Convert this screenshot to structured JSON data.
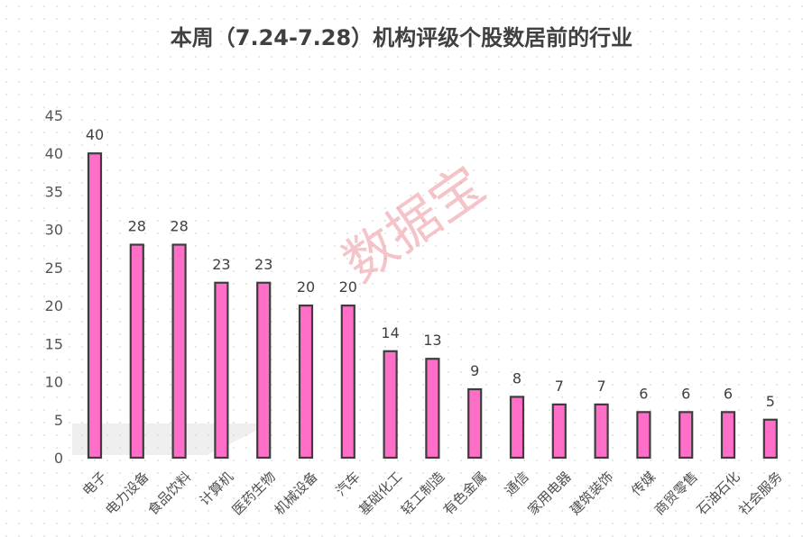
{
  "chart_data": {
    "type": "bar",
    "title": "本周（7.24-7.28）机构评级个股数居前的行业",
    "categories": [
      "电子",
      "电力设备",
      "食品饮料",
      "计算机",
      "医药生物",
      "机械设备",
      "汽车",
      "基础化工",
      "轻工制造",
      "有色金属",
      "通信",
      "家用电器",
      "建筑装饰",
      "传媒",
      "商贸零售",
      "石油石化",
      "社会服务"
    ],
    "values": [
      40,
      28,
      28,
      23,
      23,
      20,
      20,
      14,
      13,
      9,
      8,
      7,
      7,
      6,
      6,
      6,
      5
    ],
    "ylim": [
      0,
      45
    ],
    "yticks": [
      0,
      5,
      10,
      15,
      20,
      25,
      30,
      35,
      40,
      45
    ],
    "xlabel": "",
    "ylabel": "",
    "grid": false,
    "bar_color": "#ff6ec7",
    "bar_border_color": "#3d3d3d"
  },
  "watermark": "数据宝"
}
